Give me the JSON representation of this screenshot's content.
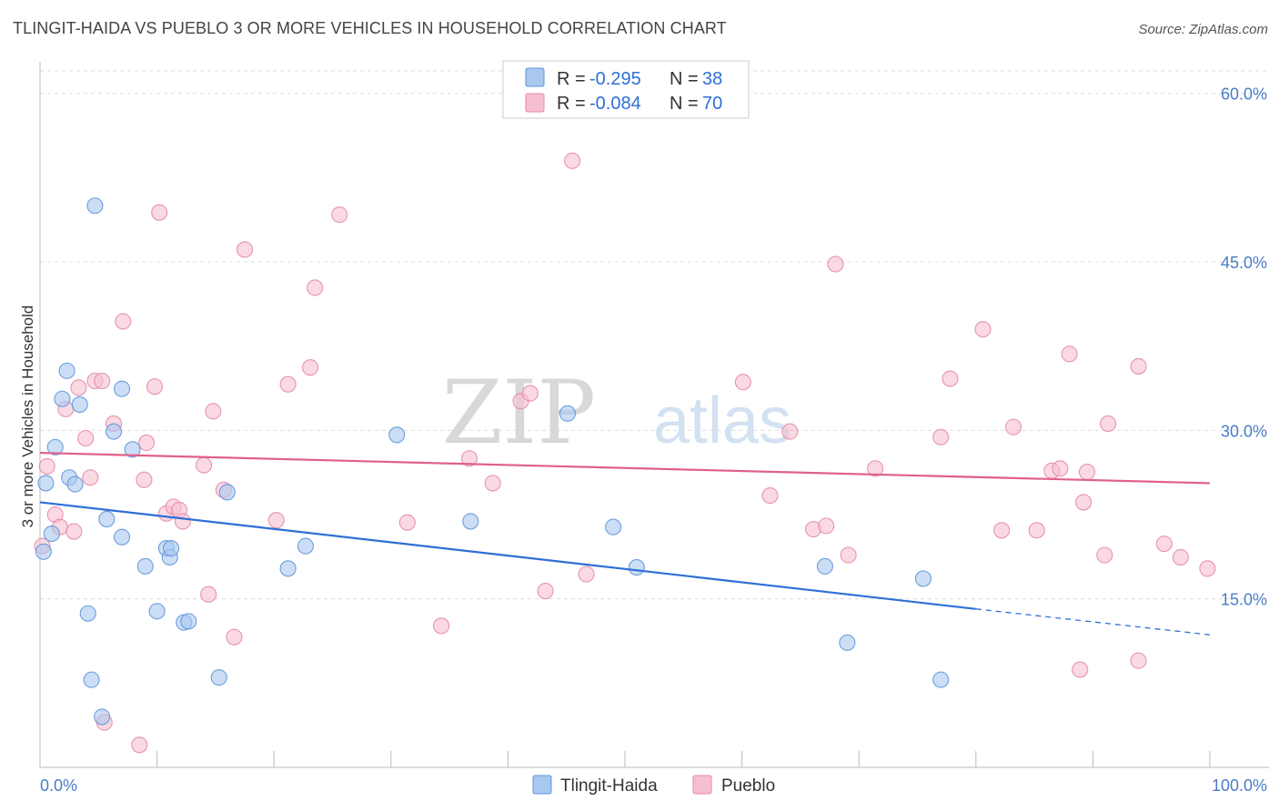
{
  "header": {
    "title": "TLINGIT-HAIDA VS PUEBLO 3 OR MORE VEHICLES IN HOUSEHOLD CORRELATION CHART",
    "source": "Source: ZipAtlas.com"
  },
  "watermark": {
    "zip": "ZIP",
    "atlas": "atlas"
  },
  "legend_box": {
    "rows": [
      {
        "r_label": "R =",
        "r_value": "-0.295",
        "n_label": "N =",
        "n_value": "38"
      },
      {
        "r_label": "R =",
        "r_value": "-0.084",
        "n_label": "N =",
        "n_value": "70"
      }
    ]
  },
  "chart_data": {
    "type": "scatter",
    "title": "TLINGIT-HAIDA VS PUEBLO 3 OR MORE VEHICLES IN HOUSEHOLD CORRELATION CHART",
    "xlabel": "",
    "ylabel": "3 or more Vehicles in Household",
    "xlim": [
      0,
      100
    ],
    "ylim": [
      0,
      62
    ],
    "x_tick_labels": [
      "0.0%",
      "100.0%"
    ],
    "y_ticks": [
      15,
      30,
      45,
      60
    ],
    "y_tick_labels": [
      "15.0%",
      "30.0%",
      "45.0%",
      "60.0%"
    ],
    "grid": true,
    "legend_position": "bottom-center",
    "colors": {
      "tlingit_fill": "#a9c8ef",
      "tlingit_stroke": "#5f95d9",
      "tlingit_line": "#2e6fd6",
      "pueblo_fill": "#f6bfd0",
      "pueblo_stroke": "#e48aa7",
      "pueblo_line": "#e0608a"
    },
    "series": [
      {
        "name": "Tlingit-Haida",
        "trend": {
          "x0": 0,
          "y0": 23.6,
          "x1": 80,
          "y1": 14.1,
          "dash_to_x": 100,
          "dash_to_y": 11.8
        },
        "points": [
          [
            0.3,
            19.2
          ],
          [
            0.5,
            25.3
          ],
          [
            1.0,
            20.8
          ],
          [
            1.3,
            28.5
          ],
          [
            1.9,
            32.8
          ],
          [
            2.3,
            35.3
          ],
          [
            2.5,
            25.8
          ],
          [
            3.0,
            25.2
          ],
          [
            3.4,
            32.3
          ],
          [
            4.1,
            13.7
          ],
          [
            4.4,
            7.8
          ],
          [
            4.7,
            50.0
          ],
          [
            5.3,
            4.5
          ],
          [
            5.7,
            22.1
          ],
          [
            6.3,
            29.9
          ],
          [
            7.0,
            33.7
          ],
          [
            7.0,
            20.5
          ],
          [
            7.9,
            28.3
          ],
          [
            9.0,
            17.9
          ],
          [
            10.0,
            13.9
          ],
          [
            10.8,
            19.5
          ],
          [
            11.1,
            18.7
          ],
          [
            11.2,
            19.5
          ],
          [
            12.3,
            12.9
          ],
          [
            12.7,
            13.0
          ],
          [
            15.3,
            8.0
          ],
          [
            16.0,
            24.5
          ],
          [
            21.2,
            17.7
          ],
          [
            22.7,
            19.7
          ],
          [
            30.5,
            29.6
          ],
          [
            36.8,
            21.9
          ],
          [
            45.1,
            31.5
          ],
          [
            49.0,
            21.4
          ],
          [
            51.0,
            17.8
          ],
          [
            67.1,
            17.9
          ],
          [
            69.0,
            11.1
          ],
          [
            75.5,
            16.8
          ],
          [
            77.0,
            7.8
          ]
        ]
      },
      {
        "name": "Pueblo",
        "trend": {
          "x0": 0,
          "y0": 28.0,
          "x1": 100,
          "y1": 25.3
        },
        "points": [
          [
            0.2,
            19.7
          ],
          [
            0.6,
            26.8
          ],
          [
            1.3,
            22.5
          ],
          [
            1.7,
            21.4
          ],
          [
            2.2,
            31.9
          ],
          [
            2.9,
            21.0
          ],
          [
            3.3,
            33.8
          ],
          [
            3.9,
            29.3
          ],
          [
            4.3,
            25.8
          ],
          [
            4.7,
            34.4
          ],
          [
            5.3,
            34.4
          ],
          [
            5.5,
            4.0
          ],
          [
            6.3,
            30.6
          ],
          [
            7.1,
            39.7
          ],
          [
            8.5,
            2.0
          ],
          [
            8.9,
            25.6
          ],
          [
            9.1,
            28.9
          ],
          [
            9.8,
            33.9
          ],
          [
            10.2,
            49.4
          ],
          [
            10.8,
            22.6
          ],
          [
            11.4,
            23.2
          ],
          [
            11.9,
            22.9
          ],
          [
            12.2,
            21.9
          ],
          [
            14.0,
            26.9
          ],
          [
            14.4,
            15.4
          ],
          [
            14.8,
            31.7
          ],
          [
            15.7,
            24.7
          ],
          [
            16.6,
            11.6
          ],
          [
            17.5,
            46.1
          ],
          [
            20.2,
            22.0
          ],
          [
            21.2,
            34.1
          ],
          [
            23.1,
            35.6
          ],
          [
            23.5,
            42.7
          ],
          [
            25.6,
            49.2
          ],
          [
            31.4,
            21.8
          ],
          [
            34.3,
            12.6
          ],
          [
            36.7,
            27.5
          ],
          [
            38.7,
            25.3
          ],
          [
            41.1,
            32.6
          ],
          [
            41.9,
            33.3
          ],
          [
            43.2,
            15.7
          ],
          [
            45.5,
            54.0
          ],
          [
            46.7,
            17.2
          ],
          [
            60.1,
            34.3
          ],
          [
            62.4,
            24.2
          ],
          [
            64.1,
            29.9
          ],
          [
            66.1,
            21.2
          ],
          [
            67.2,
            21.5
          ],
          [
            68.0,
            44.8
          ],
          [
            69.1,
            18.9
          ],
          [
            71.4,
            26.6
          ],
          [
            77.0,
            29.4
          ],
          [
            77.8,
            34.6
          ],
          [
            80.6,
            39.0
          ],
          [
            82.2,
            21.1
          ],
          [
            83.2,
            30.3
          ],
          [
            85.2,
            21.1
          ],
          [
            86.5,
            26.4
          ],
          [
            87.2,
            26.6
          ],
          [
            88.0,
            36.8
          ],
          [
            88.9,
            8.7
          ],
          [
            89.2,
            23.6
          ],
          [
            89.5,
            26.3
          ],
          [
            91.0,
            18.9
          ],
          [
            91.3,
            30.6
          ],
          [
            93.9,
            9.5
          ],
          [
            93.9,
            35.7
          ],
          [
            96.1,
            19.9
          ],
          [
            97.5,
            18.7
          ],
          [
            99.8,
            17.7
          ]
        ]
      }
    ]
  }
}
